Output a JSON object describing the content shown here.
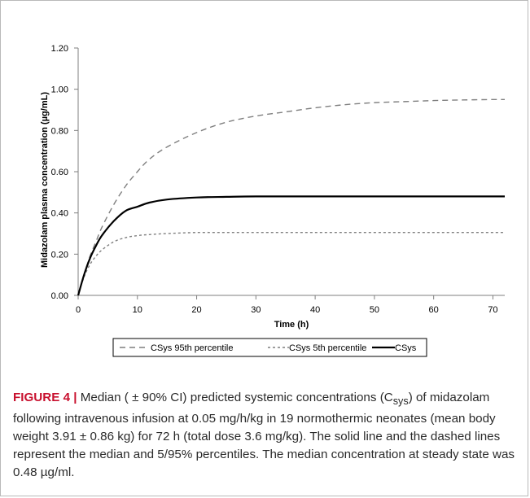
{
  "chart_data": {
    "type": "line",
    "ylabel": "Midazolam plasma concentration (µg/mL)",
    "xlabel": "Time (h)",
    "xlim": [
      0,
      72
    ],
    "ylim": [
      0,
      1.2
    ],
    "x_ticks": [
      "0",
      "10",
      "20",
      "30",
      "40",
      "50",
      "60",
      "70"
    ],
    "y_ticks": [
      "0.00",
      "0.20",
      "0.40",
      "0.60",
      "0.80",
      "1.00",
      "1.20"
    ],
    "grid": false,
    "legend_position": "bottom",
    "series": [
      {
        "name": "CSys 95th percentile",
        "style": "dashed-long",
        "color": "#7f7f7f",
        "x": [
          0,
          1,
          2,
          3,
          4,
          6,
          8,
          10,
          12,
          15,
          20,
          25,
          30,
          35,
          40,
          45,
          50,
          55,
          60,
          65,
          70,
          72
        ],
        "y": [
          0,
          0.1,
          0.19,
          0.26,
          0.33,
          0.44,
          0.53,
          0.6,
          0.66,
          0.72,
          0.79,
          0.84,
          0.87,
          0.89,
          0.91,
          0.925,
          0.935,
          0.94,
          0.945,
          0.948,
          0.95,
          0.95
        ]
      },
      {
        "name": "CSys 5th percentile",
        "style": "dashed-short",
        "color": "#7f7f7f",
        "x": [
          0,
          1,
          2,
          3,
          4,
          6,
          8,
          10,
          12,
          15,
          20,
          25,
          30,
          40,
          50,
          60,
          72
        ],
        "y": [
          0,
          0.09,
          0.15,
          0.19,
          0.22,
          0.26,
          0.28,
          0.29,
          0.295,
          0.3,
          0.305,
          0.305,
          0.305,
          0.305,
          0.305,
          0.305,
          0.305
        ]
      },
      {
        "name": "CSys",
        "style": "solid",
        "color": "#000000",
        "x": [
          0,
          1,
          2,
          3,
          4,
          6,
          8,
          10,
          12,
          15,
          20,
          25,
          30,
          40,
          50,
          60,
          72
        ],
        "y": [
          0,
          0.1,
          0.18,
          0.24,
          0.29,
          0.36,
          0.41,
          0.43,
          0.45,
          0.465,
          0.475,
          0.478,
          0.48,
          0.48,
          0.48,
          0.48,
          0.48
        ]
      }
    ]
  },
  "caption": {
    "label": "FIGURE 4",
    "separator": "|",
    "text": "Median ( ± 90% CI) predicted systemic concentrations (C",
    "subscript": "sys",
    "text_rest": ") of midazolam following intravenous infusion at 0.05 mg/h/kg in 19 normothermic neonates (mean body weight 3.91 ± 0.86 kg) for 72 h (total dose 3.6 mg/kg). The solid line and the dashed lines represent the median and 5/95% percentiles. The median concentration at steady state was 0.48 µg/ml."
  }
}
